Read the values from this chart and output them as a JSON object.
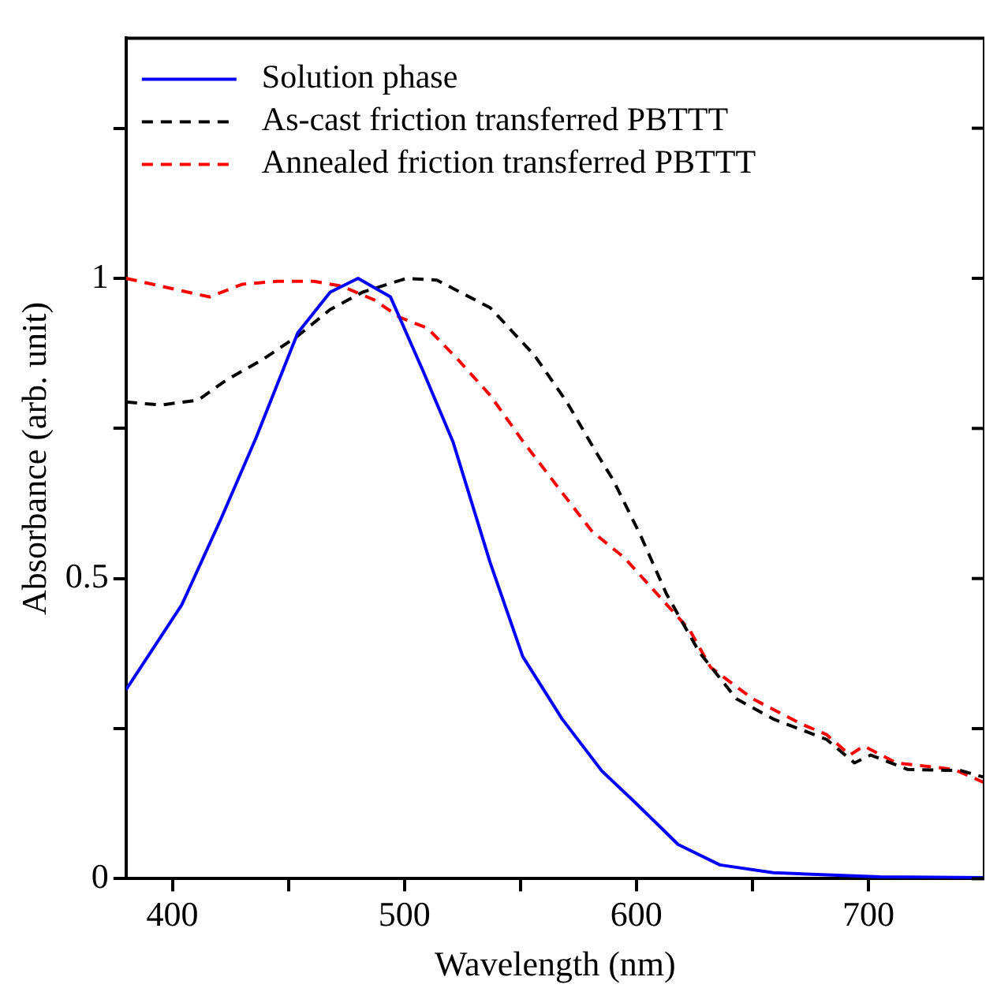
{
  "chart_data": {
    "type": "line",
    "xlabel": "Wavelength (nm)",
    "ylabel": "Absorbance (arb. unit)",
    "xlim": [
      380,
      750
    ],
    "xticks": [
      400,
      {
        "value": 450,
        "label": null
      },
      500,
      {
        "value": 550,
        "label": null
      },
      600,
      {
        "value": 650,
        "label": null
      },
      700
    ],
    "ylim": [
      0,
      1.4
    ],
    "yticks": [
      0,
      {
        "value": 0.25,
        "label": null
      },
      0.5,
      {
        "value": 0.75,
        "label": null
      },
      1,
      {
        "value": 1.25,
        "label": null
      }
    ],
    "grid": false,
    "legend": "top left",
    "marker": "none",
    "series": [
      {
        "name": "Solution phase",
        "color": "#0000ff",
        "line_style": "solid",
        "x": [
          380,
          404,
          421,
          436,
          454,
          468,
          480,
          494,
          508,
          521,
          537,
          551,
          568,
          585,
          600,
          618,
          636,
          659,
          705,
          750
        ],
        "values": [
          0.315,
          0.456,
          0.6,
          0.734,
          0.909,
          0.977,
          1.0,
          0.969,
          0.846,
          0.727,
          0.526,
          0.37,
          0.266,
          0.18,
          0.125,
          0.057,
          0.023,
          0.01,
          0.003,
          0.002
        ]
      },
      {
        "name": "As-cast friction transferred PBTTT",
        "color": "#000000",
        "line_style": "dashed",
        "x": [
          380,
          395,
          411,
          423,
          439,
          454,
          468,
          482,
          501,
          514,
          537,
          556,
          570,
          583,
          590,
          602,
          613,
          627,
          643,
          659,
          682,
          694,
          701,
          717,
          740,
          750
        ],
        "values": [
          0.794,
          0.789,
          0.797,
          0.83,
          0.865,
          0.904,
          0.948,
          0.977,
          1.0,
          0.997,
          0.951,
          0.872,
          0.794,
          0.708,
          0.664,
          0.57,
          0.474,
          0.378,
          0.3,
          0.266,
          0.232,
          0.193,
          0.206,
          0.182,
          0.18,
          0.169
        ]
      },
      {
        "name": "Annealed friction transferred PBTTT",
        "color": "#ff0000",
        "line_style": "dashed",
        "x": [
          380,
          395,
          416,
          430,
          445,
          461,
          473,
          487,
          498,
          510,
          523,
          537,
          551,
          567,
          581,
          595,
          609,
          623,
          632,
          650,
          671,
          682,
          692,
          698,
          712,
          737,
          750
        ],
        "values": [
          1.0,
          0.987,
          0.969,
          0.99,
          0.995,
          0.995,
          0.987,
          0.964,
          0.935,
          0.917,
          0.865,
          0.805,
          0.729,
          0.648,
          0.578,
          0.534,
          0.474,
          0.414,
          0.352,
          0.3,
          0.258,
          0.24,
          0.206,
          0.221,
          0.193,
          0.182,
          0.16
        ]
      }
    ]
  }
}
